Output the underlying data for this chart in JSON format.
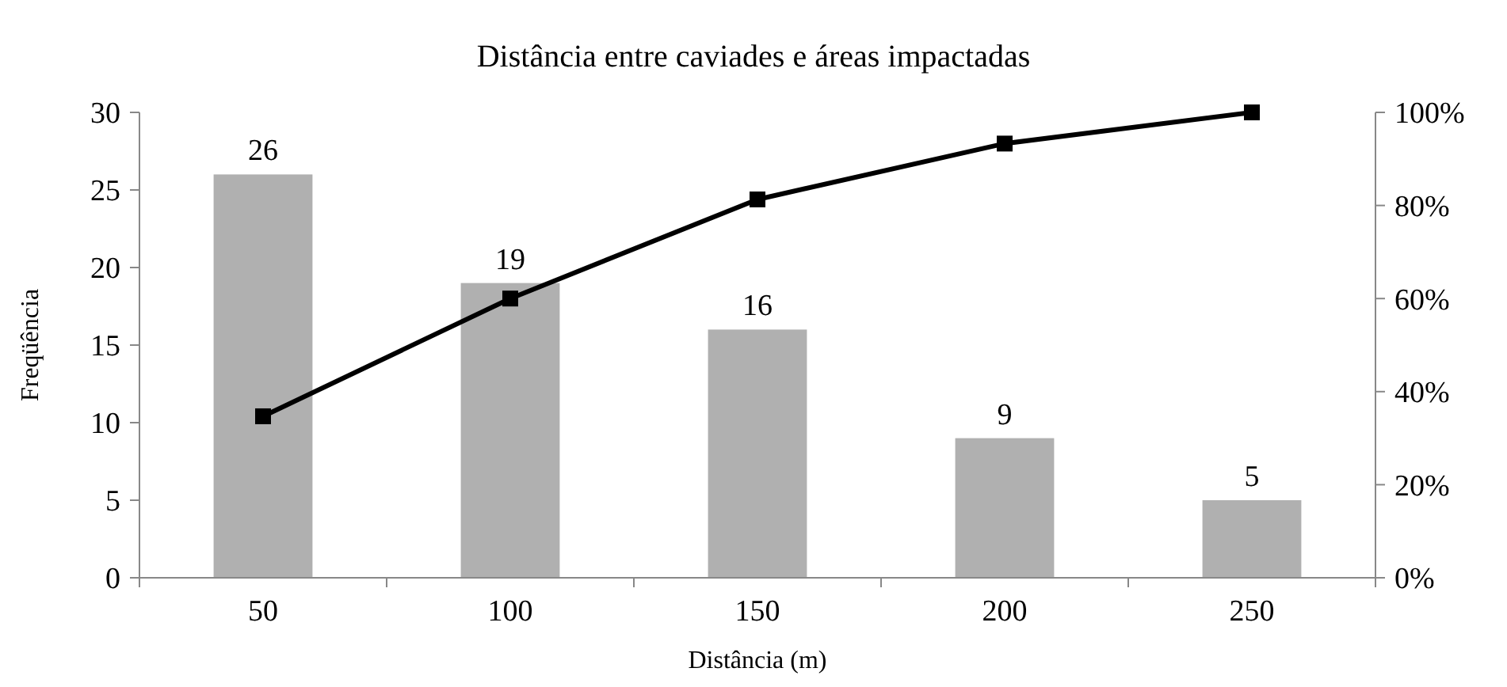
{
  "chart_data": {
    "type": "bar",
    "title": "Distância entre caviades e áreas impactadas",
    "xlabel": "Distância (m)",
    "ylabel": "Freqüência",
    "categories": [
      "50",
      "100",
      "150",
      "200",
      "250"
    ],
    "series": [
      {
        "color": "#b0b0b0",
        "values": [
          26,
          19,
          16,
          9,
          5
        ],
        "value_labels": [
          "26",
          "19",
          "16",
          "9",
          "5"
        ]
      },
      {
        "type": "line",
        "axis": "y2",
        "color": "#000000",
        "marker": "square",
        "line_style": "solid",
        "values": [
          34.7,
          60,
          81.3,
          93.3,
          100
        ]
      }
    ],
    "ylim": [
      0,
      30
    ],
    "yticks": [
      0,
      5,
      10,
      15,
      20,
      25,
      30
    ],
    "y2lim": [
      0,
      100
    ],
    "y2ticks": [
      {
        "value": 0,
        "label": "0%"
      },
      {
        "value": 20,
        "label": "20%"
      },
      {
        "value": 40,
        "label": "40%"
      },
      {
        "value": 60,
        "label": "60%"
      },
      {
        "value": 80,
        "label": "80%"
      },
      {
        "value": 100,
        "label": "100%"
      }
    ],
    "grid": false
  }
}
